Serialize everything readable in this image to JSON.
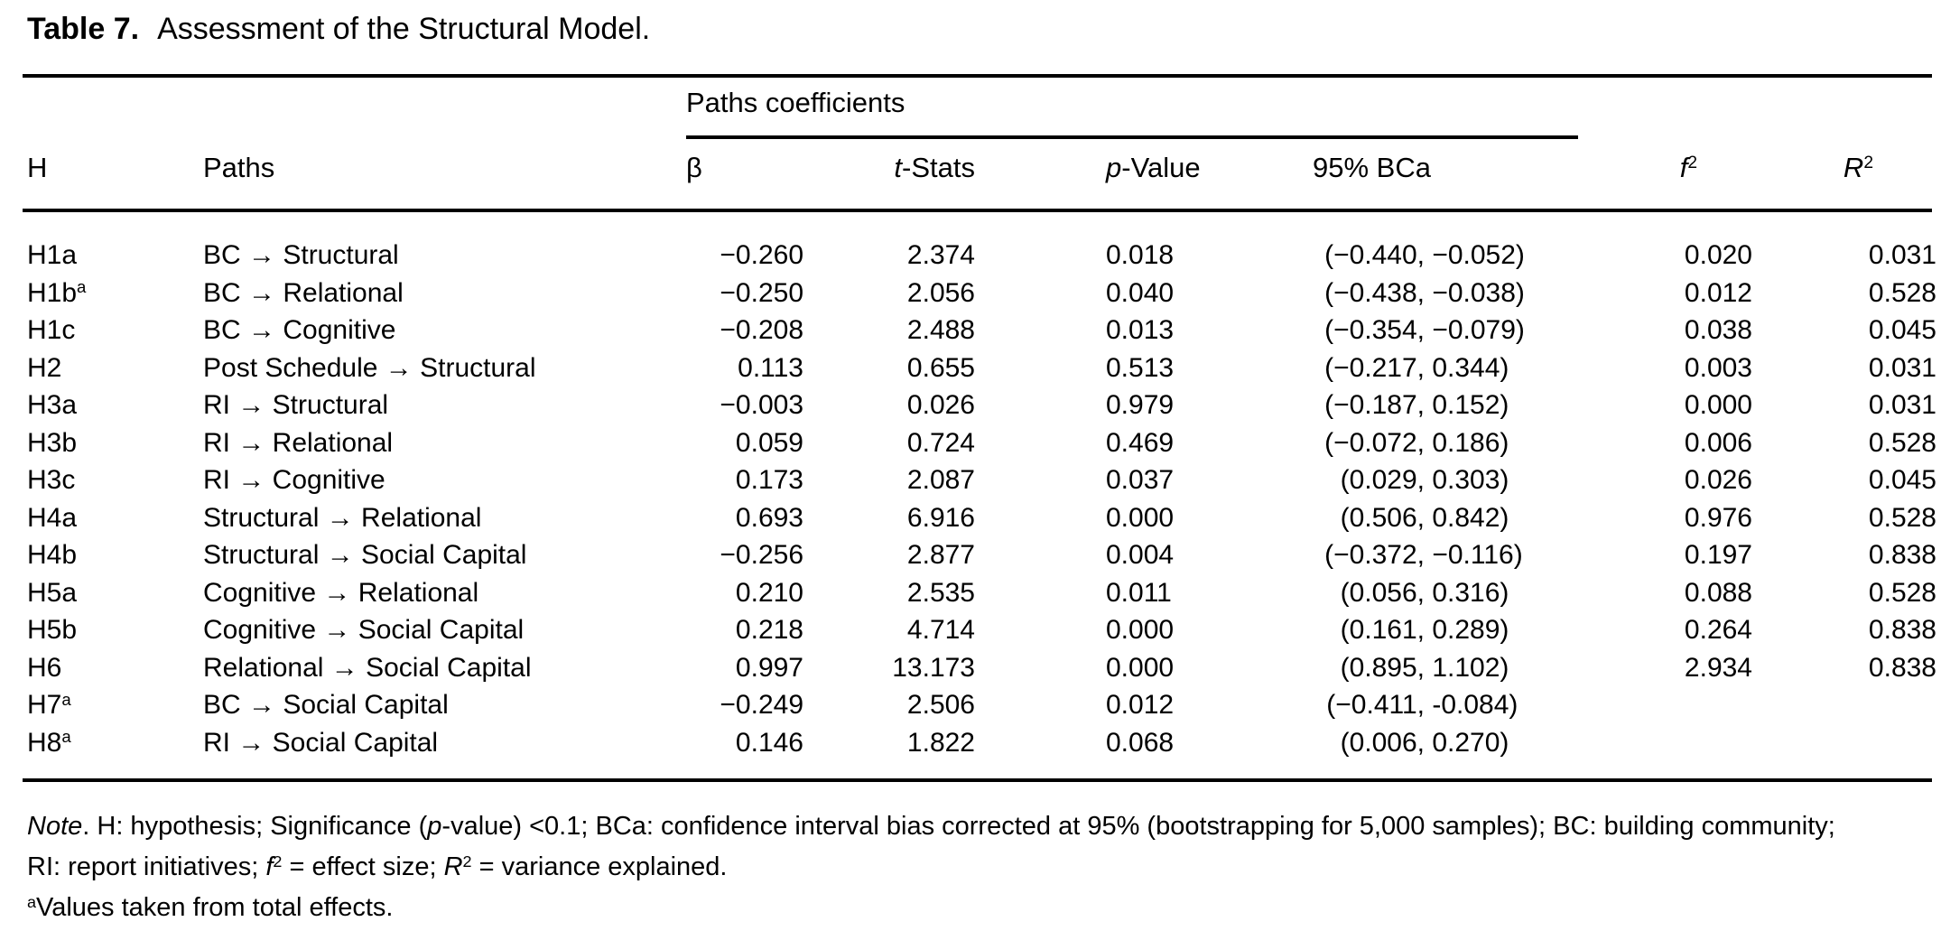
{
  "title": {
    "label": "Table 7.",
    "text": "Assessment of the Structural Model."
  },
  "header": {
    "group": "Paths coefficients",
    "h": "H",
    "paths": "Paths",
    "beta": "β",
    "t_italic": "t",
    "t_rest": "-Stats",
    "p_italic": "p",
    "p_rest": "-Value",
    "bca": "95% BCa",
    "f_italic": "f",
    "r_italic": "R",
    "sup": "2"
  },
  "table": {
    "rows": [
      {
        "h": "H1a",
        "sup": "",
        "path": "BC → Structural",
        "beta": "−0.260",
        "t": "2.374",
        "p": "0.018",
        "bca_lo": "(−0.440,",
        "bca_hi": " −0.052)",
        "f2": "0.020",
        "r2": "0.031"
      },
      {
        "h": "H1b",
        "sup": "a",
        "path": "BC → Relational",
        "beta": "−0.250",
        "t": "2.056",
        "p": "0.040",
        "bca_lo": "(−0.438,",
        "bca_hi": " −0.038)",
        "f2": "0.012",
        "r2": "0.528"
      },
      {
        "h": "H1c",
        "sup": "",
        "path": "BC → Cognitive",
        "beta": "−0.208",
        "t": "2.488",
        "p": "0.013",
        "bca_lo": "(−0.354,",
        "bca_hi": " −0.079)",
        "f2": "0.038",
        "r2": "0.045"
      },
      {
        "h": "H2",
        "sup": "",
        "path": "Post Schedule → Structural",
        "beta": "0.113",
        "t": "0.655",
        "p": "0.513",
        "bca_lo": "(−0.217,",
        "bca_hi": " 0.344)",
        "f2": "0.003",
        "r2": "0.031"
      },
      {
        "h": "H3a",
        "sup": "",
        "path": "RI → Structural",
        "beta": "−0.003",
        "t": "0.026",
        "p": "0.979",
        "bca_lo": "(−0.187,",
        "bca_hi": " 0.152)",
        "f2": "0.000",
        "r2": "0.031"
      },
      {
        "h": "H3b",
        "sup": "",
        "path": "RI → Relational",
        "beta": "0.059",
        "t": "0.724",
        "p": "0.469",
        "bca_lo": "(−0.072,",
        "bca_hi": " 0.186)",
        "f2": "0.006",
        "r2": "0.528"
      },
      {
        "h": "H3c",
        "sup": "",
        "path": "RI → Cognitive",
        "beta": "0.173",
        "t": "2.087",
        "p": "0.037",
        "bca_lo": "(0.029,",
        "bca_hi": " 0.303)",
        "f2": "0.026",
        "r2": "0.045"
      },
      {
        "h": "H4a",
        "sup": "",
        "path": "Structural → Relational",
        "beta": "0.693",
        "t": "6.916",
        "p": "0.000",
        "bca_lo": "(0.506,",
        "bca_hi": " 0.842)",
        "f2": "0.976",
        "r2": "0.528"
      },
      {
        "h": "H4b",
        "sup": "",
        "path": "Structural → Social Capital",
        "beta": "−0.256",
        "t": "2.877",
        "p": "0.004",
        "bca_lo": "(−0.372,",
        "bca_hi": " −0.116)",
        "f2": "0.197",
        "r2": "0.838"
      },
      {
        "h": "H5a",
        "sup": "",
        "path": "Cognitive → Relational",
        "beta": "0.210",
        "t": "2.535",
        "p": "0.011",
        "bca_lo": "(0.056,",
        "bca_hi": " 0.316)",
        "f2": "0.088",
        "r2": "0.528"
      },
      {
        "h": "H5b",
        "sup": "",
        "path": "Cognitive → Social Capital",
        "beta": "0.218",
        "t": "4.714",
        "p": "0.000",
        "bca_lo": "(0.161,",
        "bca_hi": " 0.289)",
        "f2": "0.264",
        "r2": "0.838"
      },
      {
        "h": "H6",
        "sup": "",
        "path": "Relational → Social Capital",
        "beta": "0.997",
        "t": "13.173",
        "p": "0.000",
        "bca_lo": "(0.895,",
        "bca_hi": " 1.102)",
        "f2": "2.934",
        "r2": "0.838"
      },
      {
        "h": "H7",
        "sup": "a",
        "path": "BC → Social Capital",
        "beta": "−0.249",
        "t": "2.506",
        "p": "0.012",
        "bca_lo": "(−0.411,",
        "bca_hi": " -0.084)",
        "f2": "",
        "r2": ""
      },
      {
        "h": "H8",
        "sup": "a",
        "path": "RI → Social Capital",
        "beta": "0.146",
        "t": "1.822",
        "p": "0.068",
        "bca_lo": "(0.006,",
        "bca_hi": " 0.270)",
        "f2": "",
        "r2": ""
      }
    ]
  },
  "note": {
    "n_italic": "Note",
    "l1_a": ". H: hypothesis; Significance (",
    "p_italic": "p",
    "l1_b": "-value) <0.1; BCa: confidence interval bias corrected at 95% (bootstrapping for 5,000 samples); BC: building community;",
    "l2_a": "RI: report initiatives; ",
    "f_italic": "f",
    "sup2": "2",
    "l2_b": " = effect size; ",
    "r_italic": "R",
    "l2_c": " = variance explained.",
    "l3_sup": "a",
    "l3_text": "Values taken from total effects."
  }
}
